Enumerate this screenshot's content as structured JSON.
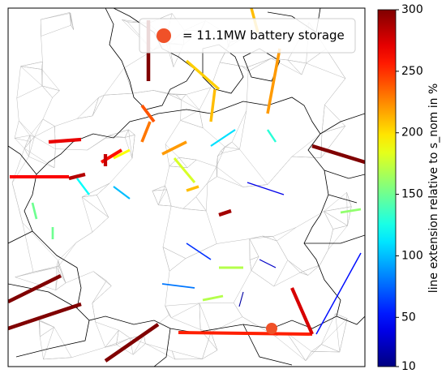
{
  "legend": {
    "label": "= 11.1MW battery storage",
    "marker_color": "#f05128"
  },
  "colorbar": {
    "label": "line extension relative to s_nom in %",
    "lim": [
      10,
      300
    ],
    "ticks": [
      10,
      50,
      100,
      150,
      200,
      250,
      300
    ],
    "colormap": "jet"
  },
  "lines": {
    "values": [
      300,
      210,
      205,
      210,
      220,
      240,
      230,
      190,
      260,
      265,
      285,
      270,
      280,
      300,
      300,
      300,
      300,
      255,
      275,
      50,
      290,
      220,
      180,
      210,
      40,
      60,
      30,
      80,
      100,
      120,
      110,
      130,
      150,
      150,
      160,
      170,
      20,
      170
    ]
  }
}
